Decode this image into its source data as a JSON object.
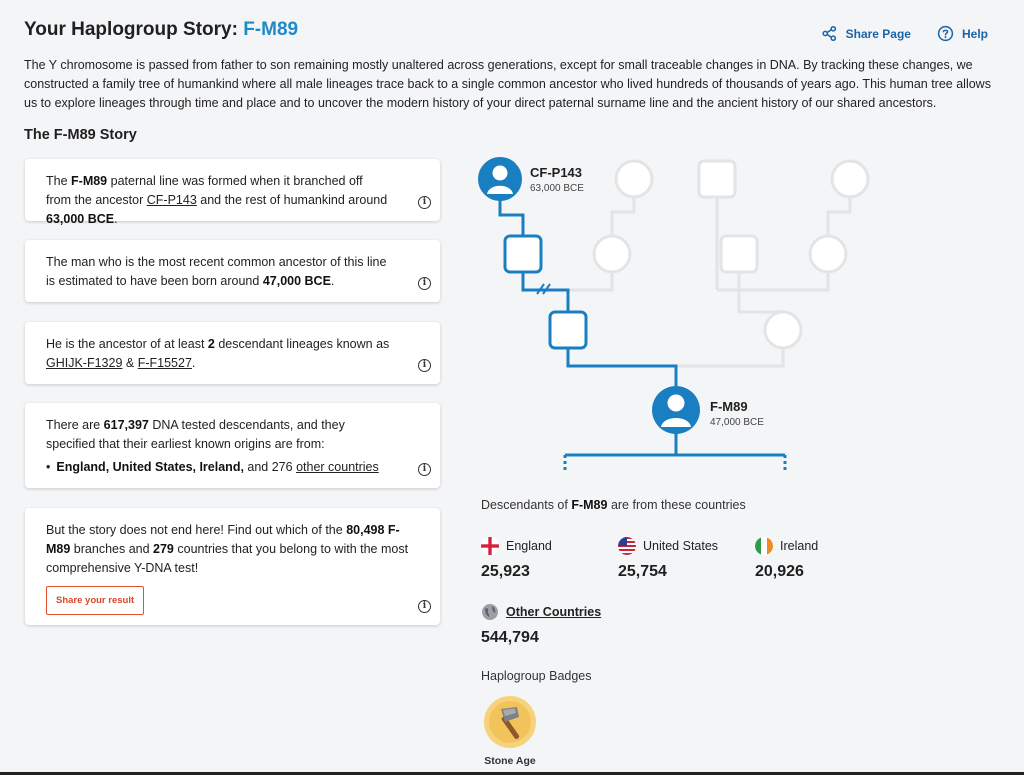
{
  "header": {
    "title_prefix": "Your Haplogroup Story: ",
    "haplogroup": "F-M89",
    "share_label": "Share Page",
    "help_label": "Help"
  },
  "intro": "The Y chromosome is passed from father to son remaining mostly unaltered across generations, except for small traceable changes in DNA. By tracking these changes, we constructed a family tree of humankind where all male lineages trace back to a single common ancestor who lived hundreds of thousands of years ago. This human tree allows us to explore lineages through time and place and to uncover the modern history of your direct paternal surname line and the ancient history of our shared ancestors.",
  "story_title": "The F-M89 Story",
  "cards": {
    "c1": {
      "t1": "The ",
      "hg": "F-M89",
      "t2": " paternal line was formed when it branched off from the ancestor ",
      "ancestor": "CF-P143",
      "t3": " and the rest of humankind around ",
      "date": "63,000 BCE",
      "t4": "."
    },
    "c2": {
      "t1": "The man who is the most recent common ancestor of this line is estimated to have been born around ",
      "date": "47,000 BCE",
      "t2": "."
    },
    "c3": {
      "t1": "He is the ancestor of at least ",
      "count": "2",
      "t2": " descendant lineages known as ",
      "l1": "GHIJK-F1329",
      "amp": " & ",
      "l2": "F-F15527",
      "t3": "."
    },
    "c4": {
      "t1": "There are ",
      "count": "617,397",
      "t2": " DNA tested descendants, and they specified that their earliest known origins are from:",
      "bullet": "•",
      "countries": "England, United States, Ireland,",
      "and": " and ",
      "other_count": "276",
      "other_link": "other countries"
    },
    "c5": {
      "t1": "But the story does not end here! Find out which of the ",
      "branches": "80,498",
      "hg": "F-M89",
      "t2": " branches and ",
      "countries": "279",
      "t3": " countries that you belong to with the most comprehensive Y-DNA test!",
      "button": "Share your result"
    }
  },
  "info_glyph": "i",
  "tree": {
    "ancestor": {
      "name": "CF-P143",
      "date": "63,000 BCE"
    },
    "current": {
      "name": "F-M89",
      "date": "47,000 BCE"
    }
  },
  "descendants": {
    "t1": "Descendants of ",
    "hg": "F-M89",
    "t2": " are from these countries",
    "countries": [
      {
        "name": "England",
        "value": "25,923",
        "icon": "england-flag-icon"
      },
      {
        "name": "United States",
        "value": "25,754",
        "icon": "us-flag-icon"
      },
      {
        "name": "Ireland",
        "value": "20,926",
        "icon": "ireland-flag-icon"
      }
    ],
    "other": {
      "name": "Other Countries",
      "value": "544,794",
      "icon": "globe-icon"
    }
  },
  "badges": {
    "title": "Haplogroup Badges",
    "items": [
      {
        "name": "Stone Age",
        "icon": "stone-axe-icon"
      }
    ]
  },
  "colors": {
    "accent": "#1f8ac6",
    "tree_line": "#1a7fc1",
    "tree_faded": "#e2e4e6",
    "link": "#1a64a8",
    "button": "#e1532f"
  }
}
